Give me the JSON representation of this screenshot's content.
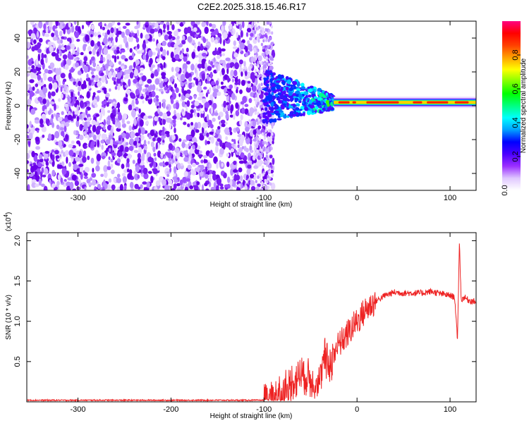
{
  "title": "C2E2.2025.318.15.46.R17",
  "chart_data": [
    {
      "type": "heatmap",
      "xlabel": "Height of straight line (km)",
      "ylabel": "Frequency (Hz)",
      "xlim": [
        -355,
        128
      ],
      "ylim": [
        -50,
        50
      ],
      "xticks": [
        -300,
        -200,
        -100,
        0,
        100
      ],
      "yticks": [
        -40,
        -20,
        0,
        20,
        40
      ],
      "colorbar": {
        "label": "Normalized spectral amplitude",
        "range": [
          0,
          1
        ],
        "ticks": [
          0.2,
          0.4,
          0.6,
          0.8
        ],
        "min_label": "0.0",
        "colors": [
          "#ffffff",
          "#e0c8ff",
          "#9b30ff",
          "#4b00ff",
          "#0000ff",
          "#00a0ff",
          "#00ffff",
          "#00ff80",
          "#00ff00",
          "#80ff00",
          "#ffff00",
          "#ffa000",
          "#ff4000",
          "#ff0000",
          "#ff0080"
        ]
      },
      "regions": [
        {
          "name": "noise",
          "x_range": [
            -355,
            -100
          ],
          "freq_range": [
            -50,
            50
          ],
          "amplitude": "0.0-0.25"
        },
        {
          "name": "transition",
          "x_range": [
            -100,
            -25
          ],
          "freq_range": [
            -8,
            20
          ],
          "amplitude": "0.3-0.6"
        },
        {
          "name": "carrier",
          "x_range": [
            -25,
            128
          ],
          "freq": 2,
          "amplitude": "0.8-1.0"
        }
      ]
    },
    {
      "type": "line",
      "xlabel": "Height of straight line (km)",
      "ylabel": "SNR (10 * v/v)",
      "yscale_label": "(x10",
      "yscale_exp": "4",
      "yscale_close": ")",
      "xlim": [
        -355,
        128
      ],
      "ylim": [
        0,
        2.1
      ],
      "xticks": [
        -300,
        -200,
        -100,
        0,
        100
      ],
      "yticks": [
        0.5,
        1.0,
        1.5,
        2.0
      ],
      "line_color": "#ee2222",
      "series": [
        {
          "x": [
            -355,
            -100,
            -90,
            -80,
            -70,
            -60,
            -50,
            -40,
            -35,
            -30,
            -25,
            -20,
            -10,
            0,
            10,
            20,
            30,
            40,
            50,
            60,
            70,
            80,
            90,
            100,
            105,
            108,
            110,
            112,
            115,
            120,
            128
          ],
          "y": [
            0.02,
            0.02,
            0.05,
            0.12,
            0.25,
            0.35,
            0.28,
            0.24,
            0.55,
            0.45,
            0.6,
            0.7,
            0.85,
            1.0,
            1.15,
            1.25,
            1.32,
            1.36,
            1.35,
            1.35,
            1.35,
            1.37,
            1.34,
            1.32,
            1.3,
            0.75,
            2.0,
            1.25,
            1.3,
            1.26,
            1.24
          ]
        }
      ]
    }
  ]
}
